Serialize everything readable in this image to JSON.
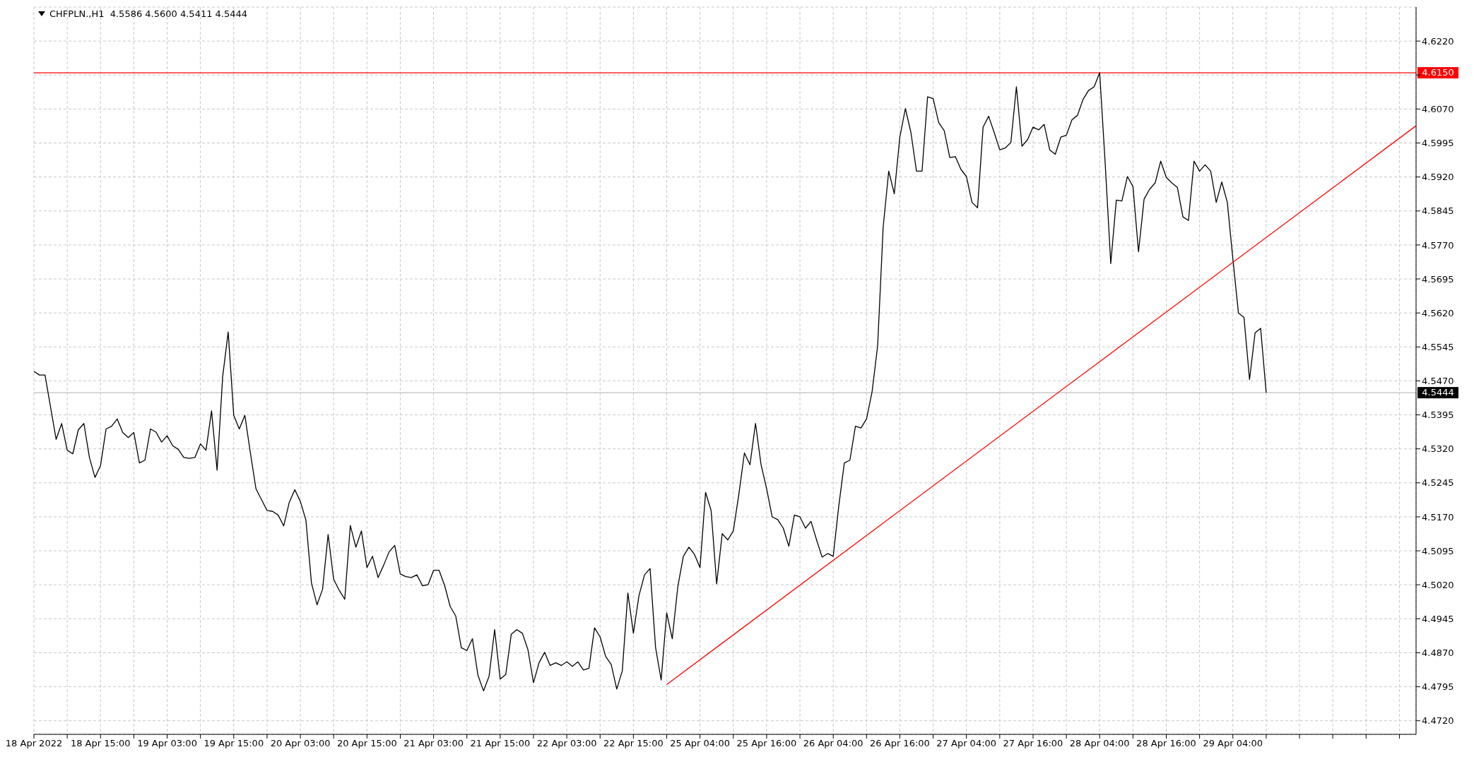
{
  "chart_data": {
    "type": "line",
    "title": "CHFPLN.,H1  4.5586 4.5600 4.5411 4.5444",
    "categories": [
      "18 Apr 2022",
      null,
      null,
      null,
      null,
      null,
      null,
      null,
      null,
      null,
      null,
      null,
      "18 Apr 15:00",
      null,
      null,
      null,
      null,
      null,
      null,
      null,
      null,
      null,
      null,
      null,
      "19 Apr 03:00",
      null,
      null,
      null,
      null,
      null,
      null,
      null,
      null,
      null,
      null,
      null,
      "19 Apr 15:00",
      null,
      null,
      null,
      null,
      null,
      null,
      null,
      null,
      null,
      null,
      null,
      "20 Apr 03:00",
      null,
      null,
      null,
      null,
      null,
      null,
      null,
      null,
      null,
      null,
      null,
      "20 Apr 15:00",
      null,
      null,
      null,
      null,
      null,
      null,
      null,
      null,
      null,
      null,
      null,
      "21 Apr 03:00",
      null,
      null,
      null,
      null,
      null,
      null,
      null,
      null,
      null,
      null,
      null,
      "21 Apr 15:00",
      null,
      null,
      null,
      null,
      null,
      null,
      null,
      null,
      null,
      null,
      null,
      "22 Apr 03:00",
      null,
      null,
      null,
      null,
      null,
      null,
      null,
      null,
      null,
      null,
      null,
      "22 Apr 15:00",
      null,
      null,
      null,
      null,
      null,
      null,
      null,
      null,
      null,
      null,
      null,
      "25 Apr 04:00",
      null,
      null,
      null,
      null,
      null,
      null,
      null,
      null,
      null,
      null,
      null,
      "25 Apr 16:00",
      null,
      null,
      null,
      null,
      null,
      null,
      null,
      null,
      null,
      null,
      null,
      "26 Apr 04:00",
      null,
      null,
      null,
      null,
      null,
      null,
      null,
      null,
      null,
      null,
      null,
      "26 Apr 16:00",
      null,
      null,
      null,
      null,
      null,
      null,
      null,
      null,
      null,
      null,
      null,
      "27 Apr 04:00",
      null,
      null,
      null,
      null,
      null,
      null,
      null,
      null,
      null,
      null,
      null,
      "27 Apr 16:00",
      null,
      null,
      null,
      null,
      null,
      null,
      null,
      null,
      null,
      null,
      null,
      "28 Apr 04:00",
      null,
      null,
      null,
      null,
      null,
      null,
      null,
      null,
      null,
      null,
      null,
      "28 Apr 16:00",
      null,
      null,
      null,
      null,
      null,
      null,
      null,
      null,
      null,
      null,
      null,
      "29 Apr 04:00",
      null,
      null,
      null,
      null,
      null,
      null,
      null,
      null,
      null,
      null,
      null,
      null,
      null,
      null,
      null,
      null,
      null,
      null,
      null,
      null,
      null,
      null,
      null,
      null,
      null,
      null,
      null,
      null,
      null,
      null,
      null,
      null,
      null
    ],
    "series": [
      {
        "color": "#000000",
        "values": [
          4.5491,
          4.5483,
          4.5483,
          4.5412,
          4.5341,
          4.5376,
          4.5317,
          4.5309,
          4.5362,
          4.5376,
          4.5301,
          4.5257,
          4.5283,
          4.5364,
          4.537,
          4.5386,
          4.5356,
          4.5345,
          4.5356,
          4.5289,
          4.5295,
          4.5364,
          4.5357,
          4.5335,
          4.5349,
          4.5327,
          4.5319,
          4.5301,
          4.5299,
          4.5301,
          4.5331,
          4.5317,
          4.5404,
          4.5273,
          4.5479,
          4.5578,
          4.5394,
          4.5364,
          4.5394,
          4.5311,
          4.5232,
          4.5208,
          4.5184,
          4.5182,
          4.5174,
          4.515,
          4.5202,
          4.523,
          4.5204,
          4.5163,
          4.5024,
          4.4976,
          4.501,
          4.5131,
          4.5032,
          4.5008,
          4.4988,
          4.5151,
          4.5103,
          4.5139,
          4.5058,
          4.5083,
          4.5036,
          4.5063,
          4.5093,
          4.5107,
          4.5044,
          4.5038,
          4.5036,
          4.5042,
          4.5018,
          4.502,
          4.5052,
          4.5052,
          4.5018,
          4.4972,
          4.4951,
          4.4881,
          4.4875,
          4.4901,
          4.482,
          4.4786,
          4.4818,
          4.4921,
          4.4812,
          4.4822,
          4.4911,
          4.4921,
          4.4913,
          4.4877,
          4.4804,
          4.4848,
          4.4871,
          4.4842,
          4.4848,
          4.4842,
          4.485,
          4.484,
          4.485,
          4.4832,
          4.4836,
          4.4925,
          4.4905,
          4.4862,
          4.4844,
          4.479,
          4.483,
          4.5002,
          4.4913,
          4.4996,
          4.5042,
          4.5056,
          4.4881,
          4.481,
          4.4958,
          4.4901,
          4.5016,
          4.5083,
          4.5103,
          4.5087,
          4.5058,
          4.5224,
          4.5184,
          4.5022,
          4.5133,
          4.5119,
          4.5139,
          4.522,
          4.5311,
          4.5285,
          4.5376,
          4.5285,
          4.5232,
          4.517,
          4.5164,
          4.5145,
          4.5105,
          4.5174,
          4.517,
          4.5145,
          4.516,
          4.5119,
          4.5081,
          4.5089,
          4.5083,
          4.5194,
          4.5289,
          4.5295,
          4.537,
          4.5366,
          4.5386,
          4.5446,
          4.5547,
          4.581,
          4.5933,
          4.5883,
          4.6008,
          4.6071,
          4.6018,
          4.5933,
          4.5933,
          4.6097,
          4.6093,
          4.604,
          4.6022,
          4.5963,
          4.5965,
          4.5937,
          4.5921,
          4.5864,
          4.5852,
          4.603,
          4.6054,
          4.6018,
          4.598,
          4.5984,
          4.5996,
          4.6119,
          4.5988,
          4.6002,
          4.603,
          4.6024,
          4.6036,
          4.598,
          4.597,
          4.6008,
          4.6012,
          4.6046,
          4.6056,
          4.6091,
          4.6111,
          4.6119,
          4.615,
          4.5949,
          4.5729,
          4.5869,
          4.5867,
          4.5921,
          4.5899,
          4.5755,
          4.5871,
          4.5893,
          4.5907,
          4.5955,
          4.5919,
          4.5907,
          4.5897,
          4.5832,
          4.5824,
          4.5955,
          4.5933,
          4.5947,
          4.5933,
          4.5864,
          4.5909,
          4.5864,
          4.5739,
          4.562,
          4.561,
          4.5473,
          4.5576,
          4.5586,
          4.5444,
          null,
          null,
          null,
          null,
          null,
          null,
          null,
          null,
          null,
          null,
          null,
          null,
          null,
          null,
          null,
          null,
          null,
          null,
          null,
          null,
          null,
          null,
          null,
          null,
          null,
          null,
          null
        ]
      },
      {
        "color": "#ff0000",
        "values": [
          null,
          null,
          null,
          null,
          null,
          null,
          null,
          null,
          null,
          null,
          null,
          null,
          null,
          null,
          null,
          null,
          null,
          null,
          null,
          null,
          null,
          null,
          null,
          null,
          null,
          null,
          null,
          null,
          null,
          null,
          null,
          null,
          null,
          null,
          null,
          null,
          null,
          null,
          null,
          null,
          null,
          null,
          null,
          null,
          null,
          null,
          null,
          null,
          null,
          null,
          null,
          null,
          null,
          null,
          null,
          null,
          null,
          null,
          null,
          null,
          null,
          null,
          null,
          null,
          null,
          null,
          null,
          null,
          null,
          null,
          null,
          null,
          null,
          null,
          null,
          null,
          null,
          null,
          null,
          null,
          null,
          null,
          null,
          null,
          null,
          null,
          null,
          null,
          null,
          null,
          null,
          null,
          null,
          null,
          null,
          null,
          null,
          null,
          null,
          null,
          null,
          null,
          null,
          null,
          null,
          null,
          null,
          null,
          null,
          null,
          null,
          null,
          null,
          null,
          4.48,
          null,
          null,
          null,
          null,
          null,
          null,
          null,
          null,
          null,
          null,
          null,
          null,
          null,
          null,
          null,
          null,
          null,
          null,
          null,
          null,
          null,
          null,
          null,
          null,
          null,
          null,
          null,
          null,
          null,
          null,
          null,
          null,
          null,
          null,
          null,
          null,
          null,
          null,
          null,
          null,
          null,
          null,
          null,
          null,
          null,
          null,
          null,
          null,
          null,
          null,
          null,
          null,
          null,
          null,
          null,
          null,
          null,
          null,
          null,
          null,
          null,
          null,
          null,
          null,
          null,
          null,
          null,
          null,
          null,
          null,
          null,
          null,
          null,
          null,
          null,
          null,
          null,
          null,
          null,
          null,
          null,
          null,
          null,
          null,
          null,
          null,
          null,
          null,
          null,
          null,
          null,
          null,
          null,
          null,
          null,
          null,
          null,
          null,
          null,
          null,
          null,
          null,
          null,
          null,
          null,
          null,
          null,
          null,
          null,
          null,
          null,
          null,
          null,
          null,
          null,
          null,
          null,
          null,
          null,
          null,
          null,
          null,
          null,
          null,
          null,
          null,
          null,
          null,
          null,
          null,
          null,
          null,
          null,
          null,
          4.6033
        ]
      }
    ],
    "ylim": [
      4.469,
      4.6295
    ],
    "yticks": [
      {
        "value": 4.472,
        "label": "4.4720"
      },
      {
        "value": 4.4795,
        "label": "4.4795"
      },
      {
        "value": 4.487,
        "label": "4.4870"
      },
      {
        "value": 4.4945,
        "label": "4.4945"
      },
      {
        "value": 4.502,
        "label": "4.5020"
      },
      {
        "value": 4.5095,
        "label": "4.5095"
      },
      {
        "value": 4.517,
        "label": "4.5170"
      },
      {
        "value": 4.5245,
        "label": "4.5245"
      },
      {
        "value": 4.532,
        "label": "4.5320"
      },
      {
        "value": 4.5395,
        "label": "4.5395"
      },
      {
        "value": 4.547,
        "label": "4.5470"
      },
      {
        "value": 4.5545,
        "label": "4.5545"
      },
      {
        "value": 4.562,
        "label": "4.5620"
      },
      {
        "value": 4.5695,
        "label": "4.5695"
      },
      {
        "value": 4.577,
        "label": "4.5770"
      },
      {
        "value": 4.5845,
        "label": "4.5845"
      },
      {
        "value": 4.592,
        "label": "4.5920"
      },
      {
        "value": 4.5995,
        "label": "4.5995"
      },
      {
        "value": 4.607,
        "label": "4.6070"
      },
      {
        "value": 4.6145,
        "label": null
      },
      {
        "value": 4.622,
        "label": "4.6220"
      }
    ],
    "ref_lines": [
      {
        "axis": "y",
        "value": 4.615,
        "label": "4.6150",
        "color": "#ff0000"
      },
      {
        "axis": "y",
        "value": 4.5444,
        "label": "4.5444",
        "color": "#c0c0c0"
      }
    ],
    "grid": true,
    "marker": "none",
    "line_style": "solid"
  }
}
